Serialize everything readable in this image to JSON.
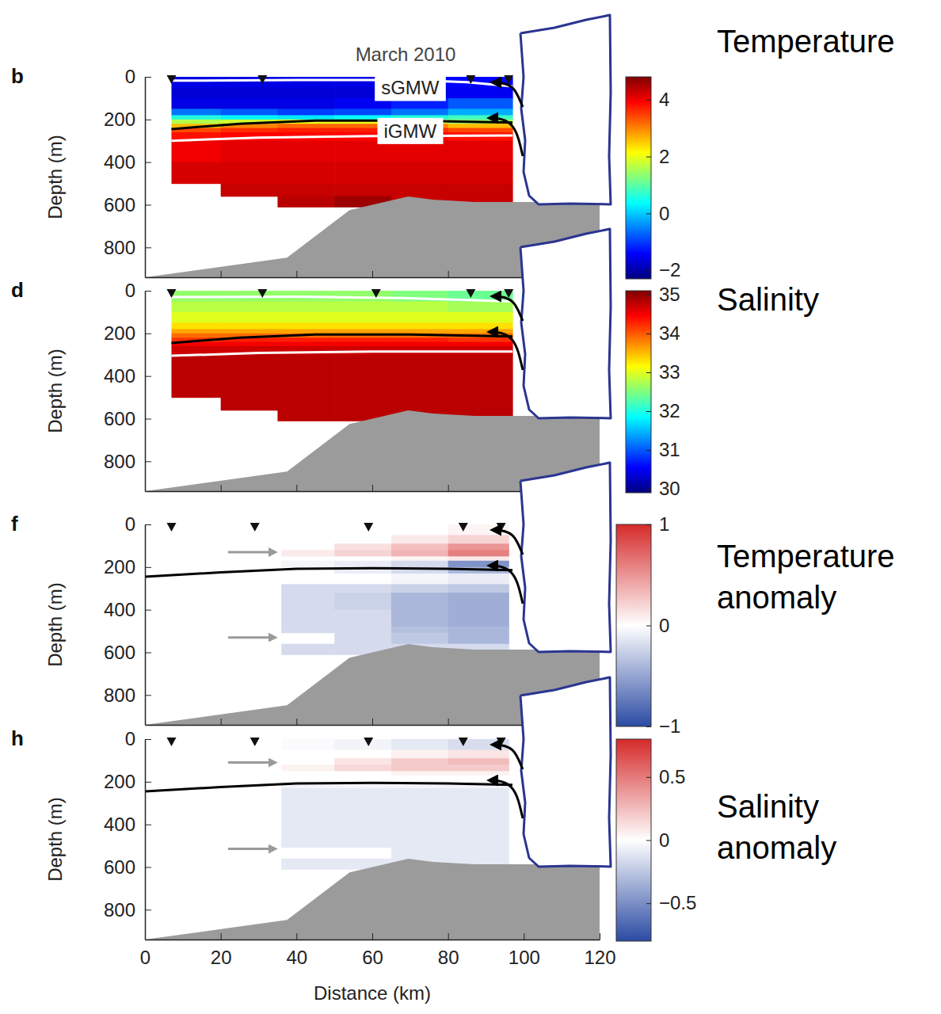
{
  "chart_data": [
    {
      "type": "heatmap",
      "panel_label": "b",
      "title": "Temperature",
      "subtitle": "March 2010",
      "annotations": [
        "sGMW",
        "iGMW"
      ],
      "ylabel": "Depth (m)",
      "xlim": [
        0,
        120
      ],
      "xticks": [
        0,
        20,
        40,
        60,
        80,
        100,
        120
      ],
      "ylim": [
        0,
        940
      ],
      "yticks": [
        0,
        200,
        400,
        600,
        800
      ],
      "tick_labels": "y",
      "stations": [
        7,
        31,
        86,
        96
      ],
      "x_edges": [
        7,
        20,
        35,
        50,
        65,
        80,
        97
      ],
      "y_edges": [
        0,
        50,
        100,
        150,
        180,
        200,
        220,
        240,
        260,
        300,
        400,
        500,
        560,
        610
      ],
      "values": [
        [
          -1.6,
          -1.6,
          -1.6,
          -1.6,
          -1.5,
          -1.4
        ],
        [
          -1.7,
          -1.7,
          -1.7,
          -1.7,
          -1.6,
          -1.5
        ],
        [
          -1.6,
          -1.6,
          -1.6,
          -1.5,
          -1.2,
          -0.8
        ],
        [
          -0.6,
          -0.8,
          -1.0,
          -0.9,
          -0.6,
          -0.2
        ],
        [
          0.6,
          0.3,
          0.2,
          0.4,
          0.6,
          0.8
        ],
        [
          1.6,
          1.8,
          2.0,
          2.0,
          1.8,
          1.4
        ],
        [
          2.6,
          3.0,
          3.2,
          3.2,
          3.0,
          2.6
        ],
        [
          3.4,
          3.6,
          3.7,
          3.7,
          3.6,
          3.4
        ],
        [
          3.8,
          3.9,
          3.9,
          3.9,
          3.9,
          3.8
        ],
        [
          4.0,
          4.1,
          4.1,
          4.1,
          4.1,
          4.1
        ],
        [
          4.2,
          4.2,
          4.2,
          4.2,
          4.2,
          4.2
        ],
        [
          null,
          4.3,
          4.3,
          4.3,
          4.3,
          4.3
        ],
        [
          null,
          null,
          4.4,
          4.6,
          4.3,
          4.3
        ]
      ],
      "lines": [
        {
          "color": "#000000",
          "x": [
            7,
            25,
            45,
            70,
            97
          ],
          "y": [
            245,
            220,
            205,
            205,
            215
          ]
        },
        {
          "color": "#ffffff",
          "x": [
            7,
            40,
            70,
            85,
            97
          ],
          "y": [
            18,
            15,
            15,
            25,
            45
          ]
        },
        {
          "color": "#ffffff",
          "x": [
            7,
            30,
            60,
            97
          ],
          "y": [
            300,
            285,
            278,
            275
          ]
        }
      ],
      "bathymetry": {
        "color": "#9b9b9b",
        "x": [
          0,
          37.5,
          54,
          69.5,
          76,
          87,
          120
        ],
        "y": [
          940,
          848,
          625,
          561,
          576,
          587,
          587
        ]
      },
      "colorbar": {
        "range": [
          -2.3,
          4.8
        ],
        "ticks": [
          {
            "value": -2,
            "label": "−2"
          },
          0,
          2,
          4
        ],
        "colors": [
          "#00007f",
          "#0000ff",
          "#007fff",
          "#00ffff",
          "#7fff7f",
          "#ffff00",
          "#ff7f00",
          "#ff0000",
          "#7f0000"
        ]
      }
    },
    {
      "type": "heatmap",
      "panel_label": "d",
      "title": "Salinity",
      "ylabel": "Depth (m)",
      "xlim": [
        0,
        120
      ],
      "xticks": [
        0,
        20,
        40,
        60,
        80,
        100,
        120
      ],
      "ylim": [
        0,
        940
      ],
      "yticks": [
        0,
        200,
        400,
        600,
        800
      ],
      "tick_labels": "y",
      "stations": [
        7,
        31,
        61,
        86,
        96
      ],
      "x_edges": [
        7,
        20,
        35,
        50,
        65,
        80,
        97
      ],
      "y_edges": [
        0,
        50,
        100,
        150,
        180,
        200,
        220,
        240,
        260,
        300,
        400,
        500,
        560,
        610
      ],
      "values": [
        [
          32.6,
          32.6,
          32.6,
          32.6,
          32.5,
          32.4
        ],
        [
          32.8,
          32.8,
          32.8,
          32.8,
          32.8,
          32.7
        ],
        [
          33.0,
          33.0,
          33.0,
          33.0,
          33.0,
          33.0
        ],
        [
          33.3,
          33.3,
          33.3,
          33.3,
          33.3,
          33.3
        ],
        [
          33.6,
          33.6,
          33.6,
          33.6,
          33.6,
          33.6
        ],
        [
          33.9,
          33.9,
          33.9,
          33.9,
          33.9,
          33.9
        ],
        [
          34.2,
          34.3,
          34.3,
          34.3,
          34.3,
          34.2
        ],
        [
          34.5,
          34.5,
          34.5,
          34.5,
          34.5,
          34.5
        ],
        [
          34.7,
          34.7,
          34.7,
          34.7,
          34.7,
          34.7
        ],
        [
          34.8,
          34.8,
          34.8,
          34.8,
          34.8,
          34.8
        ],
        [
          34.8,
          34.8,
          34.8,
          34.8,
          34.8,
          34.8
        ],
        [
          null,
          34.8,
          34.8,
          34.8,
          34.8,
          34.8
        ],
        [
          null,
          null,
          34.8,
          34.8,
          34.8,
          34.8
        ]
      ],
      "lines": [
        {
          "color": "#000000",
          "x": [
            7,
            25,
            45,
            70,
            97
          ],
          "y": [
            245,
            220,
            205,
            205,
            215
          ]
        },
        {
          "color": "#ffffff",
          "x": [
            7,
            40,
            70,
            97
          ],
          "y": [
            30,
            28,
            35,
            50
          ]
        },
        {
          "color": "#ffffff",
          "x": [
            7,
            30,
            60,
            97
          ],
          "y": [
            305,
            292,
            285,
            285
          ]
        }
      ],
      "bathymetry": {
        "color": "#9b9b9b",
        "x": [
          0,
          37.5,
          54,
          69.5,
          76,
          87,
          120
        ],
        "y": [
          940,
          848,
          625,
          561,
          576,
          587,
          587
        ]
      },
      "colorbar": {
        "range": [
          29.9,
          35.1
        ],
        "ticks": [
          30,
          31,
          32,
          33,
          34,
          35
        ],
        "colors": [
          "#00007f",
          "#0000ff",
          "#007fff",
          "#00ffff",
          "#7fff7f",
          "#ffff00",
          "#ff7f00",
          "#ff0000",
          "#7f0000"
        ]
      }
    },
    {
      "type": "heatmap",
      "panel_label": "f",
      "title": "Temperature anomaly",
      "ylabel": "Depth (m)",
      "xlim": [
        0,
        120
      ],
      "xticks": [
        0,
        20,
        40,
        60,
        80,
        100,
        120
      ],
      "ylim": [
        0,
        940
      ],
      "yticks": [
        0,
        200,
        400,
        600,
        800
      ],
      "tick_labels": "y",
      "stations": [
        7,
        29,
        59,
        84,
        94
      ],
      "x_edges": [
        36,
        50,
        65,
        80,
        96
      ],
      "y_edges": [
        0,
        50,
        90,
        120,
        150,
        170,
        200,
        230,
        280,
        320,
        400,
        480,
        510,
        560,
        610
      ],
      "values": [
        [
          0,
          0,
          0,
          0.05
        ],
        [
          0,
          0,
          0.1,
          0.2
        ],
        [
          0,
          0.15,
          0.3,
          0.5
        ],
        [
          0.1,
          0.2,
          0.35,
          0.6
        ],
        [
          0,
          0,
          0.05,
          0.1
        ],
        [
          -0.05,
          -0.1,
          -0.2,
          -0.6
        ],
        [
          0,
          -0.1,
          -0.2,
          -0.4
        ],
        [
          0,
          0,
          -0.05,
          -0.1
        ],
        [
          -0.2,
          -0.2,
          -0.25,
          -0.3
        ],
        [
          -0.2,
          -0.25,
          -0.4,
          -0.45
        ],
        [
          -0.2,
          -0.2,
          -0.4,
          -0.45
        ],
        [
          -0.2,
          -0.2,
          -0.35,
          -0.4
        ],
        [
          0,
          -0.2,
          -0.3,
          -0.4
        ],
        [
          -0.2,
          -0.2,
          -0.2,
          -0.2
        ]
      ],
      "lines": [
        {
          "color": "#000000",
          "x": [
            0,
            20,
            40,
            60,
            80,
            97
          ],
          "y": [
            245,
            225,
            208,
            205,
            208,
            215
          ]
        }
      ],
      "bathymetry": {
        "color": "#9b9b9b",
        "x": [
          0,
          37.5,
          54,
          69.5,
          76,
          87,
          120
        ],
        "y": [
          940,
          848,
          625,
          561,
          576,
          587,
          587
        ]
      },
      "colorbar": {
        "range": [
          -1,
          1
        ],
        "ticks": [
          {
            "value": -1,
            "label": "−1"
          },
          0,
          1
        ],
        "colors": [
          "#2b4ba3",
          "#ffffff",
          "#d62a2a"
        ]
      }
    },
    {
      "type": "heatmap",
      "panel_label": "h",
      "title": "Salinity anomaly",
      "ylabel": "Depth (m)",
      "xlabel": "Distance (km)",
      "xlim": [
        0,
        120
      ],
      "xticks": [
        0,
        20,
        40,
        60,
        80,
        100,
        120
      ],
      "ylim": [
        0,
        940
      ],
      "yticks": [
        0,
        200,
        400,
        600,
        800
      ],
      "stations": [
        7,
        29,
        59,
        84,
        94
      ],
      "x_edges": [
        36,
        50,
        65,
        80,
        96
      ],
      "y_edges": [
        0,
        50,
        90,
        120,
        150,
        170,
        200,
        230,
        280,
        320,
        400,
        480,
        510,
        560,
        610
      ],
      "values": [
        [
          -0.02,
          -0.05,
          -0.1,
          -0.15
        ],
        [
          0,
          0,
          0.05,
          0.1
        ],
        [
          0,
          0.1,
          0.2,
          0.25
        ],
        [
          0.05,
          0.15,
          0.2,
          0.2
        ],
        [
          0,
          0,
          0.05,
          0.05
        ],
        [
          0,
          0,
          0,
          0
        ],
        [
          -0.05,
          -0.05,
          -0.05,
          -0.05
        ],
        [
          -0.1,
          -0.1,
          -0.1,
          -0.1
        ],
        [
          -0.1,
          -0.1,
          -0.1,
          -0.1
        ],
        [
          -0.1,
          -0.1,
          -0.1,
          -0.1
        ],
        [
          -0.1,
          -0.1,
          -0.1,
          -0.1
        ],
        [
          -0.1,
          -0.1,
          -0.1,
          -0.1
        ],
        [
          0,
          0,
          -0.1,
          -0.1
        ],
        [
          -0.1,
          -0.1,
          -0.1,
          -0.1
        ]
      ],
      "lines": [
        {
          "color": "#000000",
          "x": [
            0,
            20,
            40,
            60,
            80,
            97
          ],
          "y": [
            245,
            225,
            208,
            205,
            208,
            215
          ]
        }
      ],
      "bathymetry": {
        "color": "#9b9b9b",
        "x": [
          0,
          37.5,
          54,
          69.5,
          76,
          87,
          120
        ],
        "y": [
          940,
          848,
          625,
          561,
          576,
          587,
          587
        ]
      },
      "colorbar": {
        "range": [
          -0.8,
          0.8
        ],
        "ticks": [
          {
            "value": -0.5,
            "label": "−0.5"
          },
          0,
          0.5
        ],
        "colors": [
          "#2b4ba3",
          "#ffffff",
          "#d62a2a"
        ]
      }
    }
  ]
}
